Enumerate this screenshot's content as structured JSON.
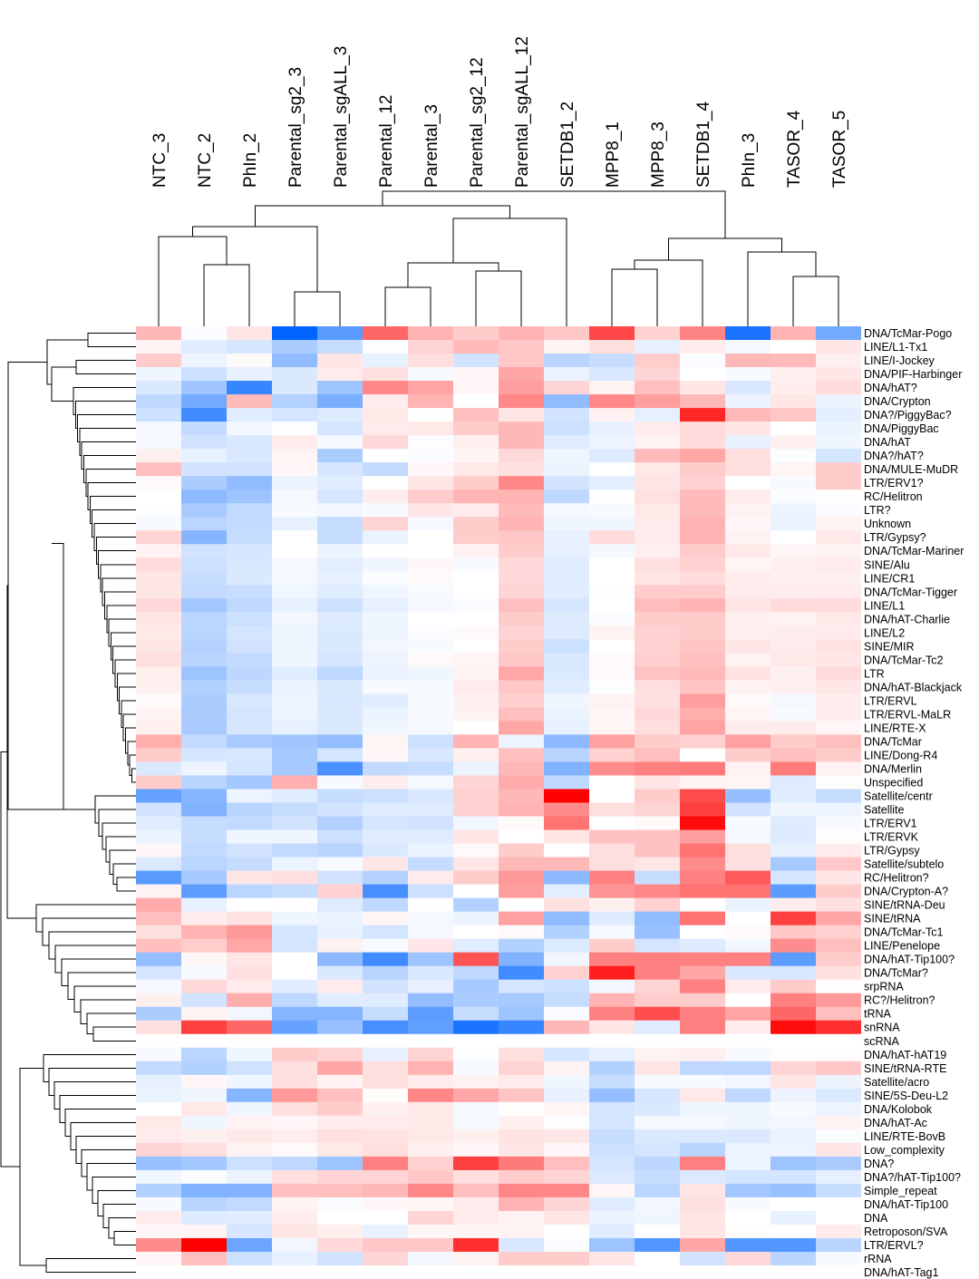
{
  "chart_data": {
    "type": "heatmap",
    "title": "",
    "xlabel": "",
    "ylabel": "",
    "color_scale": {
      "low": "#0064ff",
      "mid": "#ffffff",
      "high": "#ff0000",
      "range": [
        -1,
        1
      ]
    },
    "columns": [
      "NTC_3",
      "NTC_2",
      "PhIn_2",
      "Parental_sg2_3",
      "Parental_sgALL_3",
      "Parental_12",
      "Parental_3",
      "Parental_sg2_12",
      "Parental_sgALL_12",
      "SETDB1_2",
      "MPP8_1",
      "MPP8_3",
      "SETDB1_4",
      "PhIn_3",
      "TASOR_4",
      "TASOR_5"
    ],
    "rows": [
      "DNA/TcMar-Pogo",
      "LINE/L1-Tx1",
      "LINE/I-Jockey",
      "DNA/PIF-Harbinger",
      "DNA/hAT?",
      "DNA/Crypton",
      "DNA?/PiggyBac?",
      "DNA/PiggyBac",
      "DNA/hAT",
      "DNA?/hAT?",
      "DNA/MULE-MuDR",
      "LTR/ERV1?",
      "RC/Helitron",
      "LTR?",
      "Unknown",
      "LTR/Gypsy?",
      "DNA/TcMar-Mariner",
      "SINE/Alu",
      "LINE/CR1",
      "DNA/TcMar-Tigger",
      "LINE/L1",
      "DNA/hAT-Charlie",
      "LINE/L2",
      "SINE/MIR",
      "DNA/TcMar-Tc2",
      "LTR",
      "DNA/hAT-Blackjack",
      "LTR/ERVL",
      "LTR/ERVL-MaLR",
      "LINE/RTE-X",
      "DNA/TcMar",
      "LINE/Dong-R4",
      "DNA/Merlin",
      "Unspecified",
      "Satellite/centr",
      "Satellite",
      "LTR/ERV1",
      "LTR/ERVK",
      "LTR/Gypsy",
      "Satellite/subtelo",
      "RC/Helitron?",
      "DNA/Crypton-A?",
      "SINE/tRNA-Deu",
      "SINE/tRNA",
      "DNA/TcMar-Tc1",
      "LINE/Penelope",
      "DNA/hAT-Tip100?",
      "DNA/TcMar?",
      "srpRNA",
      "RC?/Helitron?",
      "tRNA",
      "snRNA",
      "scRNA",
      "DNA/hAT-hAT19",
      "SINE/tRNA-RTE",
      "Satellite/acro",
      "SINE/5S-Deu-L2",
      "DNA/Kolobok",
      "DNA/hAT-Ac",
      "LINE/RTE-BovB",
      "Low_complexity",
      "DNA?",
      "DNA?/hAT-Tip100?",
      "Simple_repeat",
      "DNA/hAT-Tip100",
      "DNA",
      "Retroposon/SVA",
      "LTR/ERVL?",
      "rRNA",
      "DNA/hAT-Tag1"
    ],
    "values": [
      [
        0.28,
        -0.02,
        0.1,
        -1,
        -0.65,
        0.6,
        0.3,
        0.2,
        0.3,
        0.22,
        0.72,
        0.18,
        0.48,
        -0.9,
        0.3,
        -0.55
      ],
      [
        0.05,
        -0.12,
        -0.16,
        -0.33,
        -0.22,
        -0.01,
        0.17,
        0.27,
        0.22,
        0.05,
        0.13,
        -0.1,
        0.07,
        -0.04,
        0.0,
        0.1
      ],
      [
        0.2,
        -0.07,
        0.02,
        -0.43,
        0.1,
        -0.09,
        0.13,
        -0.18,
        0.22,
        -0.28,
        -0.22,
        0.2,
        -0.02,
        0.28,
        0.27,
        0.06
      ],
      [
        -0.06,
        -0.2,
        -0.09,
        -0.14,
        0.08,
        0.12,
        -0.03,
        0.03,
        0.35,
        -0.08,
        -0.15,
        0.17,
        0.0,
        -0.03,
        0.06,
        0.1
      ],
      [
        -0.14,
        -0.37,
        -0.78,
        -0.14,
        -0.38,
        0.47,
        0.36,
        0.03,
        0.38,
        0.17,
        0.05,
        0.25,
        0.1,
        -0.15,
        0.07,
        0.14
      ],
      [
        -0.25,
        -0.55,
        0.27,
        -0.3,
        -0.52,
        0.07,
        0.3,
        0.0,
        0.47,
        -0.43,
        0.47,
        0.38,
        0.28,
        -0.08,
        0.1,
        -0.08
      ],
      [
        -0.2,
        -0.75,
        -0.12,
        -0.17,
        -0.13,
        0.09,
        0.0,
        0.25,
        0.1,
        -0.18,
        0.05,
        -0.1,
        0.85,
        0.28,
        0.22,
        -0.11
      ],
      [
        -0.04,
        -0.23,
        -0.05,
        -0.01,
        -0.17,
        0.08,
        0.09,
        0.2,
        0.28,
        -0.2,
        -0.09,
        0.08,
        0.14,
        0.1,
        0.0,
        -0.08
      ],
      [
        -0.04,
        -0.18,
        -0.15,
        0.08,
        -0.04,
        0.15,
        -0.01,
        0.06,
        0.28,
        -0.12,
        -0.07,
        0.05,
        0.14,
        -0.09,
        0.06,
        -0.06
      ],
      [
        0.06,
        -0.09,
        -0.15,
        0.04,
        -0.33,
        0.0,
        -0.02,
        0.04,
        0.15,
        -0.06,
        -0.13,
        0.27,
        0.35,
        0.13,
        -0.01,
        -0.17
      ],
      [
        0.25,
        -0.18,
        -0.18,
        0.03,
        -0.16,
        -0.23,
        0.03,
        0.09,
        0.12,
        -0.08,
        0.0,
        0.09,
        0.2,
        0.13,
        0.04,
        0.2
      ],
      [
        0.02,
        -0.33,
        -0.43,
        -0.08,
        -0.12,
        0.0,
        0.1,
        0.2,
        0.47,
        -0.18,
        -0.11,
        0.1,
        0.18,
        0.0,
        -0.03,
        0.2
      ],
      [
        0.0,
        -0.45,
        -0.38,
        -0.04,
        -0.16,
        0.07,
        0.2,
        0.29,
        0.3,
        -0.25,
        0.0,
        0.12,
        0.27,
        0.07,
        -0.02,
        0.0
      ],
      [
        -0.01,
        -0.34,
        -0.24,
        -0.03,
        -0.05,
        -0.03,
        0.1,
        0.08,
        0.27,
        -0.04,
        -0.03,
        0.09,
        0.27,
        0.05,
        -0.07,
        -0.02
      ],
      [
        -0.03,
        -0.27,
        -0.23,
        -0.1,
        -0.22,
        0.17,
        -0.04,
        0.2,
        0.3,
        -0.06,
        -0.06,
        0.08,
        0.3,
        0.03,
        -0.08,
        0.05
      ],
      [
        0.17,
        -0.48,
        -0.22,
        0.0,
        -0.22,
        -0.08,
        0.0,
        0.2,
        0.22,
        -0.1,
        0.14,
        0.08,
        0.3,
        0.05,
        0.0,
        0.09
      ],
      [
        0.05,
        -0.18,
        -0.16,
        0.0,
        -0.07,
        0.0,
        0.0,
        0.05,
        0.2,
        -0.1,
        -0.04,
        0.06,
        0.2,
        0.09,
        0.03,
        0.05
      ],
      [
        0.14,
        -0.2,
        -0.15,
        -0.04,
        -0.11,
        -0.06,
        0.03,
        -0.03,
        0.15,
        -0.12,
        0.0,
        0.12,
        0.18,
        0.04,
        0.06,
        0.08
      ],
      [
        0.1,
        -0.22,
        -0.14,
        -0.04,
        -0.1,
        -0.02,
        0.02,
        0.0,
        0.15,
        -0.12,
        0.0,
        0.1,
        0.14,
        0.07,
        0.06,
        0.06
      ],
      [
        0.1,
        -0.23,
        -0.22,
        -0.06,
        -0.12,
        -0.06,
        -0.03,
        0.0,
        0.17,
        -0.12,
        -0.01,
        0.2,
        0.2,
        0.08,
        0.07,
        0.08
      ],
      [
        0.15,
        -0.36,
        -0.25,
        -0.09,
        -0.2,
        -0.1,
        -0.04,
        -0.02,
        0.25,
        -0.16,
        0.0,
        0.26,
        0.3,
        0.1,
        0.14,
        0.14
      ],
      [
        0.1,
        -0.27,
        -0.2,
        -0.05,
        -0.13,
        -0.06,
        0.0,
        0.0,
        0.2,
        -0.13,
        -0.02,
        0.2,
        0.2,
        0.06,
        0.05,
        0.09
      ],
      [
        0.09,
        -0.27,
        -0.17,
        -0.06,
        -0.14,
        -0.06,
        -0.02,
        0.02,
        0.17,
        -0.13,
        0.05,
        0.18,
        0.2,
        0.06,
        0.07,
        0.08
      ],
      [
        0.1,
        -0.29,
        -0.18,
        -0.06,
        -0.14,
        -0.05,
        -0.03,
        0.0,
        0.2,
        -0.2,
        0.0,
        0.18,
        0.23,
        0.1,
        0.08,
        0.11
      ],
      [
        0.13,
        -0.28,
        -0.24,
        -0.06,
        -0.16,
        -0.07,
        0.02,
        0.04,
        0.22,
        -0.14,
        0.02,
        0.19,
        0.25,
        0.05,
        0.09,
        0.1
      ],
      [
        0.06,
        -0.38,
        -0.26,
        -0.12,
        -0.25,
        -0.08,
        -0.06,
        0.05,
        0.35,
        -0.14,
        0.02,
        0.24,
        0.27,
        0.11,
        0.06,
        0.14
      ],
      [
        0.06,
        -0.3,
        -0.22,
        -0.08,
        -0.14,
        -0.03,
        -0.04,
        0.08,
        0.22,
        -0.12,
        -0.01,
        0.13,
        0.23,
        0.05,
        0.06,
        0.1
      ],
      [
        0.02,
        -0.33,
        -0.15,
        -0.07,
        -0.15,
        -0.12,
        -0.03,
        0.06,
        0.19,
        -0.06,
        0.05,
        0.12,
        0.38,
        0.02,
        -0.04,
        0.07
      ],
      [
        0.05,
        -0.33,
        -0.17,
        -0.07,
        -0.14,
        -0.08,
        -0.03,
        0.05,
        0.25,
        -0.08,
        0.04,
        0.15,
        0.32,
        0.04,
        -0.03,
        0.07
      ],
      [
        0.06,
        -0.34,
        -0.16,
        -0.1,
        -0.14,
        -0.06,
        -0.04,
        0.0,
        0.35,
        -0.1,
        0.04,
        0.13,
        0.36,
        0.07,
        0.08,
        0.03
      ],
      [
        0.32,
        -0.23,
        -0.34,
        -0.37,
        -0.42,
        0.04,
        -0.2,
        0.3,
        -0.07,
        -0.45,
        0.37,
        0.2,
        0.18,
        0.37,
        0.2,
        0.25
      ],
      [
        0.2,
        -0.16,
        -0.15,
        -0.35,
        -0.17,
        0.03,
        -0.15,
        0.06,
        0.25,
        -0.28,
        0.18,
        0.25,
        0.0,
        0.2,
        0.25,
        0.2
      ],
      [
        -0.14,
        -0.07,
        -0.17,
        -0.35,
        -0.71,
        -0.24,
        -0.22,
        -0.08,
        0.28,
        -0.5,
        0.45,
        0.5,
        0.52,
        0.05,
        0.52,
        0.05
      ],
      [
        0.2,
        -0.28,
        -0.36,
        0.31,
        -0.03,
        0.07,
        -0.04,
        0.17,
        0.33,
        -0.25,
        0.0,
        0.1,
        0.05,
        0.04,
        -0.13,
        0.01
      ],
      [
        -0.6,
        -0.47,
        -0.07,
        -0.12,
        -0.22,
        -0.2,
        -0.15,
        0.18,
        0.28,
        1.0,
        0.0,
        0.2,
        0.7,
        -0.41,
        -0.12,
        -0.22
      ],
      [
        -0.18,
        -0.5,
        -0.28,
        -0.22,
        -0.18,
        -0.12,
        -0.12,
        0.18,
        0.3,
        0.45,
        0.13,
        0.17,
        0.75,
        -0.18,
        -0.06,
        -0.07
      ],
      [
        -0.12,
        -0.22,
        -0.24,
        -0.18,
        -0.3,
        -0.17,
        -0.18,
        -0.05,
        0.02,
        0.55,
        0.0,
        0.02,
        0.95,
        -0.03,
        -0.13,
        -0.03
      ],
      [
        -0.08,
        -0.22,
        -0.06,
        -0.06,
        -0.2,
        -0.12,
        -0.12,
        0.1,
        0.0,
        0.1,
        0.24,
        0.24,
        0.38,
        -0.04,
        -0.13,
        0.01
      ],
      [
        0.03,
        -0.24,
        -0.18,
        -0.24,
        -0.28,
        -0.14,
        -0.08,
        0.02,
        0.2,
        0.0,
        0.13,
        0.24,
        0.55,
        0.13,
        -0.1,
        0.08
      ],
      [
        -0.14,
        -0.27,
        -0.22,
        -0.08,
        -0.03,
        0.1,
        -0.22,
        0.1,
        0.28,
        0.28,
        0.13,
        0.1,
        0.45,
        0.12,
        -0.35,
        0.22
      ],
      [
        -0.65,
        -0.35,
        0.1,
        0.12,
        -0.18,
        -0.29,
        0.08,
        0.2,
        0.4,
        -0.45,
        0.5,
        -0.22,
        0.5,
        0.65,
        -0.16,
        0.1
      ],
      [
        0.05,
        -0.63,
        -0.27,
        -0.22,
        0.18,
        -0.72,
        -0.2,
        0.0,
        0.38,
        -0.11,
        0.42,
        0.47,
        0.55,
        0.55,
        -0.64,
        0.2
      ]
    ],
    "values_lower": [
      [
        0.33,
        -0.09,
        0.0,
        0.0,
        -0.13,
        -0.25,
        0.0,
        -0.3,
        0.0,
        0.12,
        0.06,
        0.18,
        0.0,
        -0.08,
        0.07,
        0.12
      ],
      [
        0.25,
        0.07,
        0.11,
        -0.06,
        -0.08,
        0.04,
        -0.04,
        -0.08,
        0.37,
        -0.43,
        -0.13,
        -0.43,
        0.55,
        0.0,
        0.75,
        0.35
      ],
      [
        0.12,
        0.3,
        0.4,
        -0.17,
        -0.09,
        -0.17,
        -0.04,
        0.0,
        0.02,
        -0.3,
        -0.04,
        -0.4,
        0.0,
        0.02,
        0.22,
        0.18
      ],
      [
        0.25,
        0.2,
        0.35,
        -0.17,
        0.05,
        -0.03,
        0.1,
        -0.12,
        -0.3,
        -0.14,
        0.2,
        -0.17,
        -0.13,
        -0.05,
        0.45,
        0.25
      ],
      [
        -0.42,
        0.03,
        0.1,
        0.0,
        -0.45,
        -0.75,
        -0.38,
        0.68,
        -0.5,
        -0.05,
        0.5,
        0.5,
        0.5,
        0.5,
        -0.63,
        0.2
      ],
      [
        -0.17,
        -0.03,
        0.12,
        0.0,
        -0.14,
        -0.28,
        -0.15,
        -0.25,
        -0.75,
        0.18,
        0.88,
        0.5,
        0.35,
        -0.15,
        -0.15,
        0.12
      ],
      [
        -0.04,
        0.15,
        0.08,
        -0.12,
        0.08,
        -0.18,
        -0.1,
        -0.35,
        -0.17,
        -0.2,
        -0.05,
        0.17,
        0.5,
        0.08,
        0.2,
        0.01
      ],
      [
        0.06,
        -0.18,
        0.32,
        -0.25,
        -0.12,
        -0.12,
        -0.42,
        -0.33,
        -0.35,
        -0.22,
        0.3,
        0.2,
        0.2,
        0.0,
        0.5,
        0.4
      ],
      [
        -0.33,
        0.05,
        -0.05,
        -0.47,
        -0.48,
        -0.22,
        -0.63,
        -0.22,
        -0.38,
        -0.02,
        0.5,
        0.7,
        0.5,
        0.36,
        0.6,
        0.25
      ],
      [
        0.12,
        0.75,
        0.6,
        -0.6,
        -0.4,
        -0.72,
        -0.62,
        -0.9,
        -0.78,
        0.28,
        0.1,
        -0.12,
        0.5,
        0.07,
        0.95,
        0.82
      ]
    ],
    "values_bottom": [
      [
        0.0,
        0.0,
        0.0,
        0.0,
        0.0,
        0.0,
        0.0,
        0.0,
        0.0,
        0.0,
        0.0,
        0.0,
        0.0,
        0.0,
        0.0,
        0.0
      ],
      [
        -0.03,
        -0.27,
        -0.06,
        0.2,
        0.17,
        -0.1,
        0.17,
        -0.01,
        0.13,
        -0.17,
        -0.1,
        0.05,
        0.06,
        -0.03,
        0.01,
        0.01
      ],
      [
        -0.23,
        -0.3,
        -0.19,
        0.12,
        0.35,
        0.13,
        0.3,
        -0.03,
        0.17,
        0.05,
        -0.3,
        0.1,
        -0.25,
        -0.25,
        0.17,
        0.22
      ],
      [
        -0.1,
        0.03,
        -0.06,
        0.13,
        0.05,
        0.13,
        0.07,
        0.05,
        0.08,
        -0.06,
        -0.22,
        -0.03,
        -0.03,
        -0.05,
        0.1,
        -0.07
      ],
      [
        -0.08,
        -0.06,
        -0.48,
        0.4,
        0.25,
        0.01,
        0.47,
        0.35,
        0.23,
        -0.09,
        -0.42,
        -0.16,
        0.09,
        -0.25,
        -0.07,
        -0.14
      ],
      [
        0.0,
        0.09,
        -0.06,
        0.13,
        0.2,
        0.06,
        0.09,
        -0.04,
        0.01,
        0.04,
        -0.17,
        -0.14,
        -0.06,
        -0.06,
        -0.03,
        -0.07
      ],
      [
        0.09,
        -0.06,
        0.05,
        0.03,
        0.07,
        0.08,
        0.09,
        -0.04,
        0.06,
        -0.01,
        -0.17,
        -0.04,
        -0.04,
        -0.06,
        -0.05,
        0.05
      ],
      [
        0.08,
        0.06,
        0.09,
        0.07,
        0.12,
        0.11,
        0.09,
        0.06,
        0.11,
        0.1,
        -0.22,
        -0.14,
        -0.14,
        -0.14,
        -0.08,
        -0.02
      ],
      [
        0.17,
        0.13,
        0.05,
        0.02,
        0.09,
        0.13,
        0.06,
        0.03,
        0.1,
        0.03,
        -0.2,
        -0.17,
        -0.28,
        -0.07,
        -0.07,
        0.1
      ],
      [
        -0.4,
        -0.36,
        -0.2,
        -0.25,
        -0.38,
        0.5,
        0.18,
        0.75,
        0.52,
        0.25,
        -0.17,
        -0.26,
        0.5,
        -0.07,
        -0.38,
        -0.33
      ],
      [
        -0.05,
        -0.02,
        -0.08,
        0.13,
        0.17,
        0.17,
        0.22,
        0.13,
        0.2,
        0.17,
        -0.14,
        -0.22,
        -0.14,
        -0.17,
        -0.17,
        -0.1
      ],
      [
        -0.3,
        -0.5,
        -0.5,
        0.25,
        0.25,
        0.28,
        0.47,
        0.25,
        0.47,
        0.47,
        0.03,
        -0.27,
        0.1,
        -0.36,
        -0.4,
        -0.22
      ],
      [
        -0.03,
        -0.28,
        -0.24,
        0.05,
        -0.02,
        0.03,
        0.04,
        0.08,
        0.3,
        0.17,
        -0.12,
        -0.05,
        0.12,
        -0.03,
        0.0,
        0.0
      ],
      [
        0.07,
        -0.13,
        -0.12,
        0.07,
        0.0,
        0.0,
        0.17,
        0.08,
        0.05,
        0.1,
        -0.08,
        -0.06,
        0.1,
        0.0,
        -0.09,
        0.0
      ],
      [
        0.03,
        0.04,
        -0.16,
        0.1,
        0.06,
        -0.09,
        0.03,
        0.04,
        0.05,
        0.0,
        -0.12,
        0.0,
        0.1,
        0.01,
        0.0,
        0.08
      ],
      [
        0.45,
        1.0,
        -0.58,
        -0.05,
        0.15,
        0.22,
        0.22,
        0.82,
        -0.15,
        -0.02,
        -0.38,
        -0.68,
        0.35,
        -0.68,
        -0.68,
        -0.28
      ],
      [
        0.03,
        0.25,
        -0.2,
        -0.09,
        -0.18,
        0.16,
        -0.05,
        0.05,
        0.2,
        0.2,
        0.1,
        0.0,
        -0.18,
        0.15,
        -0.28,
        -0.03
      ]
    ]
  }
}
